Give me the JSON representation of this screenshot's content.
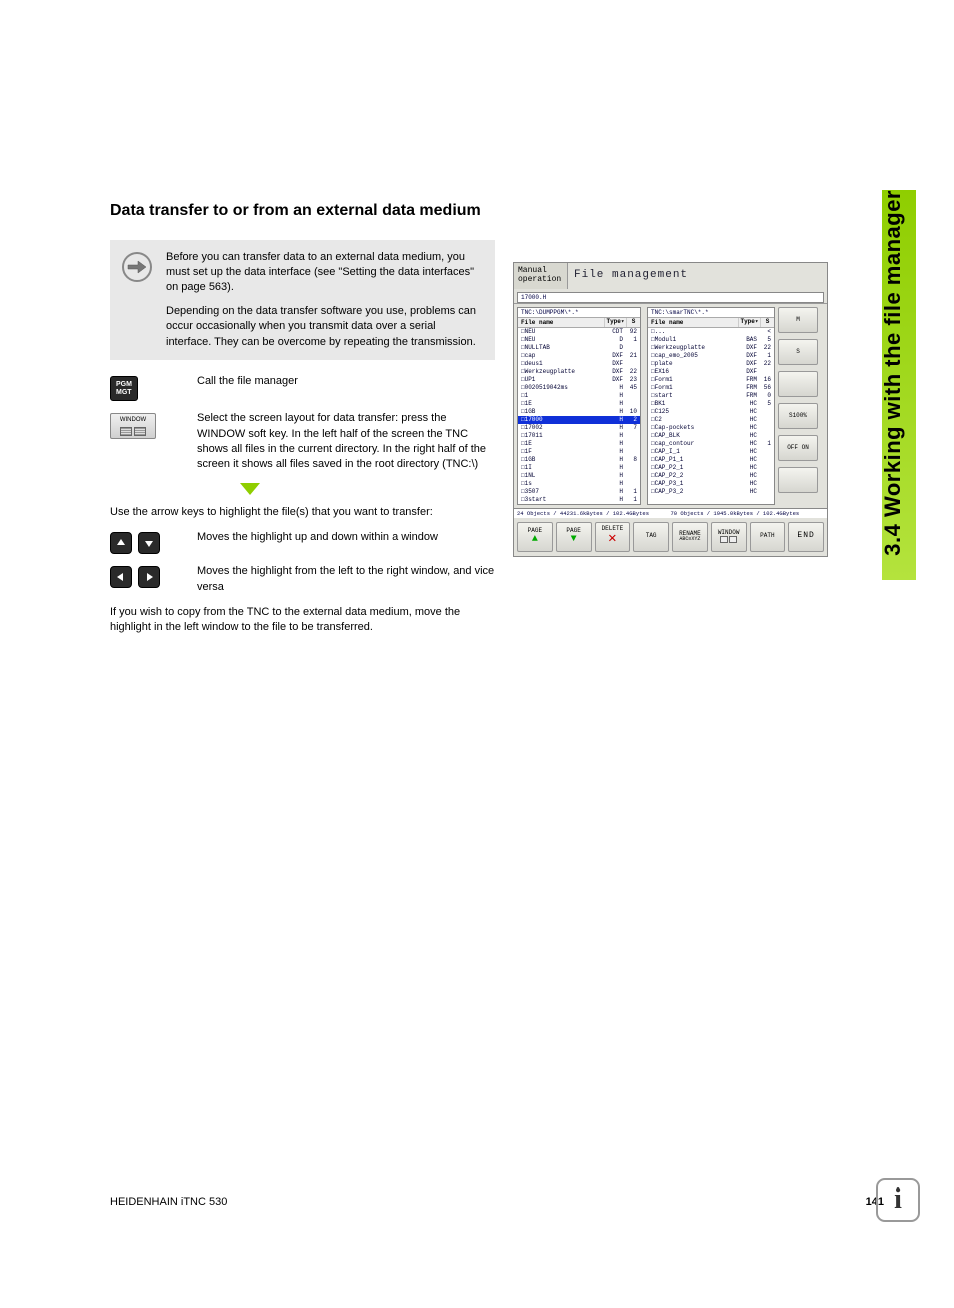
{
  "sideTab": "3.4 Working with the file manager",
  "heading": "Data transfer to or from an external data medium",
  "note": {
    "p1": "Before you can transfer data to an external data medium, you must set up the data interface (see \"Setting the data interfaces\" on page 563).",
    "p2": "Depending on the data transfer software you use, problems can occur occasionally when you transmit data over a serial interface. They can be overcome by repeating the transmission."
  },
  "steps": {
    "s1": "Call the file manager",
    "s2": "Select the screen layout for data transfer: press the WINDOW soft key. In the left half of the screen the TNC shows all files in the current directory. In the right half of the screen it shows all files saved in the root directory (TNC:\\)"
  },
  "afterArrow": "Use the arrow keys to highlight the file(s) that you want to transfer:",
  "arrows": {
    "vert": "Moves the highlight up and down within a window",
    "horz": "Moves the highlight from the left to the right window, and vice versa"
  },
  "closing": "If you wish to copy from the TNC to the external data medium, move the highlight in the left window to the file to be transferred.",
  "keys": {
    "pgm": "PGM\nMGT",
    "window": "WINDOW"
  },
  "screenshot": {
    "mode": "Manual operation",
    "title": "File management",
    "topPath": "17000.H",
    "left": {
      "path": "TNC:\\DUMPPGM\\*.*",
      "cols": [
        "File name",
        "Type▾",
        "S"
      ],
      "rows": [
        {
          "fn": "NEU",
          "ty": "CDT",
          "sz": "92"
        },
        {
          "fn": "NEU",
          "ty": "D",
          "sz": "1"
        },
        {
          "fn": "NULLTAB",
          "ty": "D",
          "sz": ""
        },
        {
          "fn": "cap",
          "ty": "DXF",
          "sz": "21"
        },
        {
          "fn": "deus1",
          "ty": "DXF",
          "sz": ""
        },
        {
          "fn": "Werkzeugplatte",
          "ty": "DXF",
          "sz": "22"
        },
        {
          "fn": "UP1",
          "ty": "DXF",
          "sz": "23"
        },
        {
          "fn": "0020519042ms",
          "ty": "H",
          "sz": "45"
        },
        {
          "fn": "1",
          "ty": "H",
          "sz": ""
        },
        {
          "fn": "1E",
          "ty": "H",
          "sz": ""
        },
        {
          "fn": "1GB",
          "ty": "H",
          "sz": "10"
        },
        {
          "fn": "17000",
          "ty": "H",
          "sz": "2",
          "sel": true
        },
        {
          "fn": "17002",
          "ty": "H",
          "sz": "7"
        },
        {
          "fn": "17011",
          "ty": "H",
          "sz": ""
        },
        {
          "fn": "1E",
          "ty": "H",
          "sz": ""
        },
        {
          "fn": "1F",
          "ty": "H",
          "sz": ""
        },
        {
          "fn": "1GB",
          "ty": "H",
          "sz": "8"
        },
        {
          "fn": "1I",
          "ty": "H",
          "sz": ""
        },
        {
          "fn": "1NL",
          "ty": "H",
          "sz": ""
        },
        {
          "fn": "1s",
          "ty": "H",
          "sz": ""
        },
        {
          "fn": "3507",
          "ty": "H",
          "sz": "1"
        },
        {
          "fn": "3start",
          "ty": "H",
          "sz": "1"
        }
      ],
      "status": "24 Objects / 44231.6kBytes / 102.4GBytes"
    },
    "right": {
      "path": "TNC:\\smarTNC\\*.*",
      "cols": [
        "File name",
        "Type▾",
        "S"
      ],
      "rows": [
        {
          "fn": "...",
          "ty": "",
          "sz": "<"
        },
        {
          "fn": "Modul1",
          "ty": "BAS",
          "sz": "5"
        },
        {
          "fn": "Werkzeugplatte",
          "ty": "DXF",
          "sz": "22"
        },
        {
          "fn": "cap_emo_2005",
          "ty": "DXF",
          "sz": "1"
        },
        {
          "fn": "plate",
          "ty": "DXF",
          "sz": "22"
        },
        {
          "fn": "EX16",
          "ty": "DXF",
          "sz": ""
        },
        {
          "fn": "Form1",
          "ty": "FRM",
          "sz": "16"
        },
        {
          "fn": "Form1",
          "ty": "FRM",
          "sz": "56"
        },
        {
          "fn": "start",
          "ty": "FRM",
          "sz": "0"
        },
        {
          "fn": "BK1",
          "ty": "HC",
          "sz": "5"
        },
        {
          "fn": "C125",
          "ty": "HC",
          "sz": ""
        },
        {
          "fn": "C2",
          "ty": "HC",
          "sz": ""
        },
        {
          "fn": "Cap-pockets",
          "ty": "HC",
          "sz": ""
        },
        {
          "fn": "CAP_BLK",
          "ty": "HC",
          "sz": ""
        },
        {
          "fn": "cap_contour",
          "ty": "HC",
          "sz": "1"
        },
        {
          "fn": "CAP_I_1",
          "ty": "HC",
          "sz": ""
        },
        {
          "fn": "CAP_P1_1",
          "ty": "HC",
          "sz": ""
        },
        {
          "fn": "CAP_P2_1",
          "ty": "HC",
          "sz": ""
        },
        {
          "fn": "CAP_P2_2",
          "ty": "HC",
          "sz": ""
        },
        {
          "fn": "CAP_P3_1",
          "ty": "HC",
          "sz": ""
        },
        {
          "fn": "CAP_P3_2",
          "ty": "HC",
          "sz": ""
        }
      ],
      "status": "70 Objects / 1945.0kBytes / 102.4GBytes"
    },
    "sideButtons": [
      "M",
      "S",
      "",
      "S100%",
      "OFF  ON",
      ""
    ],
    "softkeys": [
      {
        "l": "PAGE",
        "icon": "up"
      },
      {
        "l": "PAGE",
        "icon": "dn"
      },
      {
        "l": "DELETE",
        "icon": "x"
      },
      {
        "l": "TAG"
      },
      {
        "l": "RENAME",
        "sub": "ABC≡XYZ"
      },
      {
        "l": "WINDOW",
        "icon": "win"
      },
      {
        "l": "PATH"
      },
      {
        "l": "END",
        "end": true
      }
    ]
  },
  "footer": {
    "left": "HEIDENHAIN iTNC 530",
    "page": "141"
  }
}
